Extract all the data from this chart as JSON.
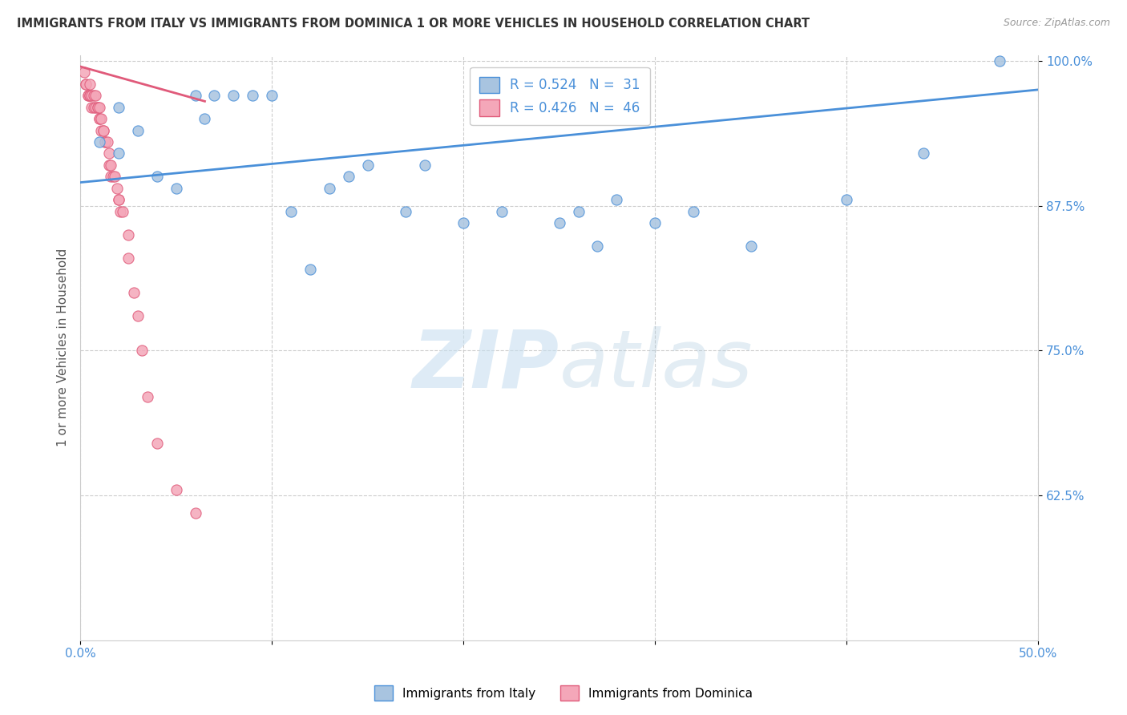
{
  "title": "IMMIGRANTS FROM ITALY VS IMMIGRANTS FROM DOMINICA 1 OR MORE VEHICLES IN HOUSEHOLD CORRELATION CHART",
  "source": "Source: ZipAtlas.com",
  "ylabel": "1 or more Vehicles in Household",
  "xlim": [
    0.0,
    0.5
  ],
  "ylim": [
    0.5,
    1.005
  ],
  "xticks": [
    0.0,
    0.1,
    0.2,
    0.3,
    0.4,
    0.5
  ],
  "xticklabels": [
    "0.0%",
    "",
    "",
    "",
    "",
    "50.0%"
  ],
  "yticks": [
    0.625,
    0.75,
    0.875,
    1.0
  ],
  "yticklabels": [
    "62.5%",
    "75.0%",
    "87.5%",
    "100.0%"
  ],
  "legend_R_italy": "R = 0.524",
  "legend_N_italy": "N =  31",
  "legend_R_dominica": "R = 0.426",
  "legend_N_dominica": "N =  46",
  "italy_color": "#a8c4e0",
  "dominica_color": "#f4a7b9",
  "italy_line_color": "#4a90d9",
  "dominica_line_color": "#e05a7a",
  "grid_color": "#cccccc",
  "title_color": "#333333",
  "axis_label_color": "#555555",
  "tick_color": "#4a90d9",
  "italy_x": [
    0.01,
    0.02,
    0.02,
    0.03,
    0.04,
    0.05,
    0.06,
    0.065,
    0.07,
    0.08,
    0.09,
    0.1,
    0.11,
    0.12,
    0.13,
    0.14,
    0.15,
    0.17,
    0.18,
    0.2,
    0.22,
    0.25,
    0.26,
    0.27,
    0.28,
    0.3,
    0.32,
    0.35,
    0.4,
    0.44,
    0.48
  ],
  "italy_y": [
    0.93,
    0.92,
    0.96,
    0.94,
    0.9,
    0.89,
    0.97,
    0.95,
    0.97,
    0.97,
    0.97,
    0.97,
    0.87,
    0.82,
    0.89,
    0.9,
    0.91,
    0.87,
    0.91,
    0.86,
    0.87,
    0.86,
    0.87,
    0.84,
    0.88,
    0.86,
    0.87,
    0.84,
    0.88,
    0.92,
    1.0
  ],
  "dominica_x": [
    0.002,
    0.003,
    0.003,
    0.004,
    0.004,
    0.005,
    0.005,
    0.005,
    0.006,
    0.006,
    0.007,
    0.007,
    0.008,
    0.008,
    0.009,
    0.009,
    0.01,
    0.01,
    0.01,
    0.011,
    0.011,
    0.012,
    0.012,
    0.013,
    0.013,
    0.014,
    0.015,
    0.015,
    0.016,
    0.016,
    0.017,
    0.018,
    0.019,
    0.02,
    0.02,
    0.021,
    0.022,
    0.025,
    0.025,
    0.028,
    0.03,
    0.032,
    0.035,
    0.04,
    0.05,
    0.06
  ],
  "dominica_y": [
    0.99,
    0.98,
    0.98,
    0.97,
    0.97,
    0.98,
    0.97,
    0.97,
    0.97,
    0.96,
    0.97,
    0.96,
    0.97,
    0.96,
    0.96,
    0.96,
    0.96,
    0.95,
    0.95,
    0.95,
    0.94,
    0.94,
    0.94,
    0.93,
    0.93,
    0.93,
    0.92,
    0.91,
    0.91,
    0.9,
    0.9,
    0.9,
    0.89,
    0.88,
    0.88,
    0.87,
    0.87,
    0.85,
    0.83,
    0.8,
    0.78,
    0.75,
    0.71,
    0.67,
    0.63,
    0.61
  ],
  "italy_trendline_x": [
    0.0,
    0.5
  ],
  "italy_trendline_y": [
    0.895,
    0.975
  ],
  "dominica_trendline_x": [
    0.0,
    0.065
  ],
  "dominica_trendline_y": [
    0.995,
    0.965
  ],
  "watermark_zip": "ZIP",
  "watermark_atlas": "atlas",
  "marker_size": 90
}
